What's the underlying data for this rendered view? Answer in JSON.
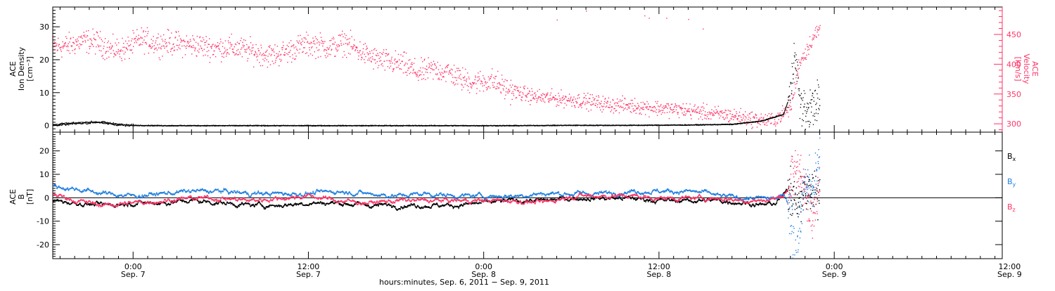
{
  "chart_data": [
    {
      "type": "scatter",
      "panel": "top",
      "ylabel_left": [
        "ACE",
        "Ion Density",
        "[cm⁻³]"
      ],
      "ylabel_right": [
        "ACE",
        "Velocity",
        "[km/s]"
      ],
      "ylim_left": [
        -2,
        36
      ],
      "ylim_right": [
        286,
        496
      ],
      "left_ticks": [
        0,
        10,
        20,
        30
      ],
      "right_ticks": [
        300,
        350,
        400,
        450
      ],
      "x_units": "hours since 2011-09-06 00:00 UT",
      "xlim": [
        18.5,
        83.5
      ],
      "series": [
        {
          "color": "#000000",
          "axis": "left",
          "x": [
            18.5,
            20,
            21.5,
            22.5,
            23.5,
            26,
            30,
            34,
            38,
            42,
            46,
            50,
            54,
            58,
            62,
            65,
            67,
            68.5,
            69,
            69.3,
            69.6,
            70,
            70.5,
            70.8,
            71
          ],
          "y": [
            0.3,
            0.8,
            1.2,
            0.7,
            0.2,
            0.1,
            0.1,
            0.1,
            0.1,
            0.1,
            0.1,
            0.1,
            0.2,
            0.2,
            0.3,
            0.5,
            1.5,
            3.5,
            10,
            25,
            7,
            4,
            6,
            8,
            5
          ]
        },
        {
          "color": "#ff3366",
          "axis": "right",
          "x": [
            18.5,
            19.5,
            20.5,
            21.5,
            22.5,
            23.5,
            24.5,
            25.5,
            26.5,
            27.5,
            28.5,
            29.5,
            30.5,
            31.5,
            32.5,
            33.5,
            34.5,
            35.5,
            36.5,
            37.5,
            38.5,
            39.5,
            40.5,
            41.5,
            42.5,
            43.5,
            44.5,
            45.5,
            46.5,
            47.5,
            48.5,
            49.5,
            50.5,
            51.5,
            52.5,
            53.5,
            54.5,
            55.5,
            56.5,
            57.5,
            58.5,
            59.5,
            60.5,
            61.5,
            62.5,
            63.5,
            64.5,
            65.5,
            66.5,
            67.5,
            68,
            68.5,
            69,
            69.3,
            69.6,
            70,
            70.5,
            71
          ],
          "y": [
            430,
            432,
            440,
            438,
            425,
            426,
            443,
            436,
            437,
            434,
            432,
            428,
            429,
            426,
            420,
            415,
            422,
            432,
            434,
            428,
            438,
            422,
            410,
            404,
            400,
            386,
            392,
            388,
            375,
            370,
            374,
            360,
            352,
            346,
            344,
            342,
            340,
            337,
            333,
            332,
            330,
            328,
            326,
            324,
            322,
            318,
            316,
            313,
            308,
            306,
            310,
            318,
            330,
            365,
            405,
            420,
            445,
            460
          ]
        }
      ]
    },
    {
      "type": "scatter",
      "panel": "bottom",
      "ylabel_left": [
        "ACE",
        "B",
        "[nT]"
      ],
      "ylim": [
        -26,
        28
      ],
      "ticks": [
        -20,
        -10,
        0,
        10,
        20
      ],
      "zero_line": true,
      "x_units": "hours since 2011-09-06 00:00 UT",
      "xlim": [
        18.5,
        83.5
      ],
      "legend": [
        "Bx",
        "By",
        "Bz"
      ],
      "legend_placement": "right",
      "series": [
        {
          "name": "Bx",
          "color": "#000000",
          "x": [
            18.5,
            20,
            22,
            24,
            26,
            28,
            30,
            32,
            34,
            36,
            38,
            40,
            42,
            44,
            46,
            48,
            50,
            52,
            54,
            56,
            58,
            60,
            62,
            64,
            66,
            67,
            68,
            68.6,
            69,
            69.5,
            70,
            70.5,
            71
          ],
          "y": [
            -1,
            -2,
            -3,
            -2,
            -2,
            -1,
            -2,
            -3,
            -3,
            -2,
            -2,
            -3,
            -3,
            -3,
            -3,
            -2,
            -1,
            -1,
            0,
            0,
            0,
            -1,
            -1,
            -1,
            -2,
            -3,
            -2,
            2,
            5,
            -3,
            4,
            2,
            6
          ]
        },
        {
          "name": "By",
          "color": "#1e7fe0",
          "x": [
            18.5,
            20,
            22,
            24,
            26,
            28,
            30,
            32,
            34,
            36,
            38,
            40,
            42,
            44,
            46,
            48,
            50,
            52,
            54,
            56,
            58,
            60,
            62,
            63.5,
            64,
            66,
            67,
            68,
            68.6,
            69,
            69.3,
            69.6,
            70,
            70.5,
            71
          ],
          "y": [
            5,
            4,
            2,
            1,
            2,
            3,
            3,
            2,
            2,
            2,
            3,
            2,
            1,
            2,
            1,
            1,
            1,
            2,
            2,
            2,
            3,
            3,
            3,
            2,
            1,
            0,
            0,
            0,
            1,
            -5,
            -25,
            -10,
            8,
            2,
            18
          ]
        },
        {
          "name": "Bz",
          "color": "#ff3366",
          "x": [
            18.5,
            20,
            22,
            24,
            26,
            28,
            30,
            32,
            34,
            36,
            38,
            40,
            42,
            44,
            46,
            48,
            50,
            52,
            54,
            56,
            58,
            60,
            62,
            64,
            66,
            67,
            68,
            68.6,
            69,
            69.5,
            70,
            70.5,
            71
          ],
          "y": [
            2,
            -1,
            -3,
            -2,
            -1,
            0,
            0,
            -1,
            0,
            1,
            -1,
            -2,
            -1,
            -1,
            -1,
            -1,
            -1,
            -2,
            1,
            1,
            1,
            0,
            0,
            0,
            -1,
            -1,
            0,
            2,
            6,
            15,
            0,
            -4,
            8
          ]
        }
      ]
    }
  ],
  "legend_labels": {
    "bx": {
      "main": "B",
      "sub": "x"
    },
    "by": {
      "main": "B",
      "sub": "y"
    },
    "bz": {
      "main": "B",
      "sub": "z"
    }
  },
  "xaxis": {
    "ticks": [
      {
        "hour": 24,
        "time": "0:00",
        "date": "Sep. 7"
      },
      {
        "hour": 36,
        "time": "12:00",
        "date": "Sep. 7"
      },
      {
        "hour": 48,
        "time": "0:00",
        "date": "Sep. 8"
      },
      {
        "hour": 60,
        "time": "12:00",
        "date": "Sep. 8"
      },
      {
        "hour": 72,
        "time": "0:00",
        "date": "Sep. 9"
      },
      {
        "hour": 84,
        "time": "12:00",
        "date": "Sep. 9"
      }
    ],
    "label": "hours:minutes, Sep.  6, 2011 − Sep.  9, 2011"
  },
  "colors": {
    "density": "#000000",
    "velocity": "#ff3366",
    "bx": "#000000",
    "by": "#1e7fe0",
    "bz": "#ff3366"
  }
}
